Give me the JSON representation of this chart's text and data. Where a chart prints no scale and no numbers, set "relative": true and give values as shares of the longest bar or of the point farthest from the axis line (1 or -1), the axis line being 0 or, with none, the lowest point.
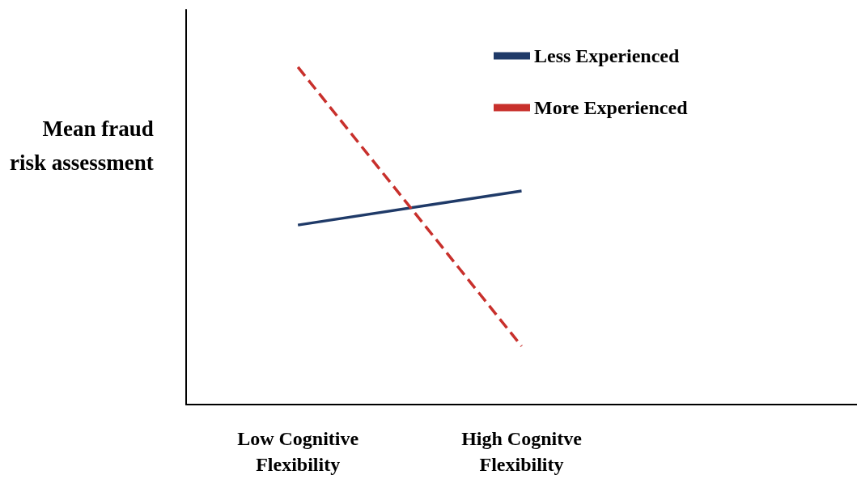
{
  "chart_data": {
    "type": "line",
    "ylabel": "Mean fraud\nrisk assessment",
    "categories": [
      "Low Cognitive\nFlexibility",
      "High Cognitve\nFlexibility",
      null
    ],
    "relative": true,
    "marker": "none",
    "legend": "top right",
    "grid": false,
    "series": [
      {
        "name": "Less Experienced",
        "color": "#1f3a68",
        "line_style": "solid",
        "values": [
          0.532,
          0.633,
          null
        ]
      },
      {
        "name": "More Experienced",
        "color": "#c8302c",
        "line_style": "dashed",
        "values": [
          1,
          0.173,
          null
        ]
      }
    ]
  }
}
